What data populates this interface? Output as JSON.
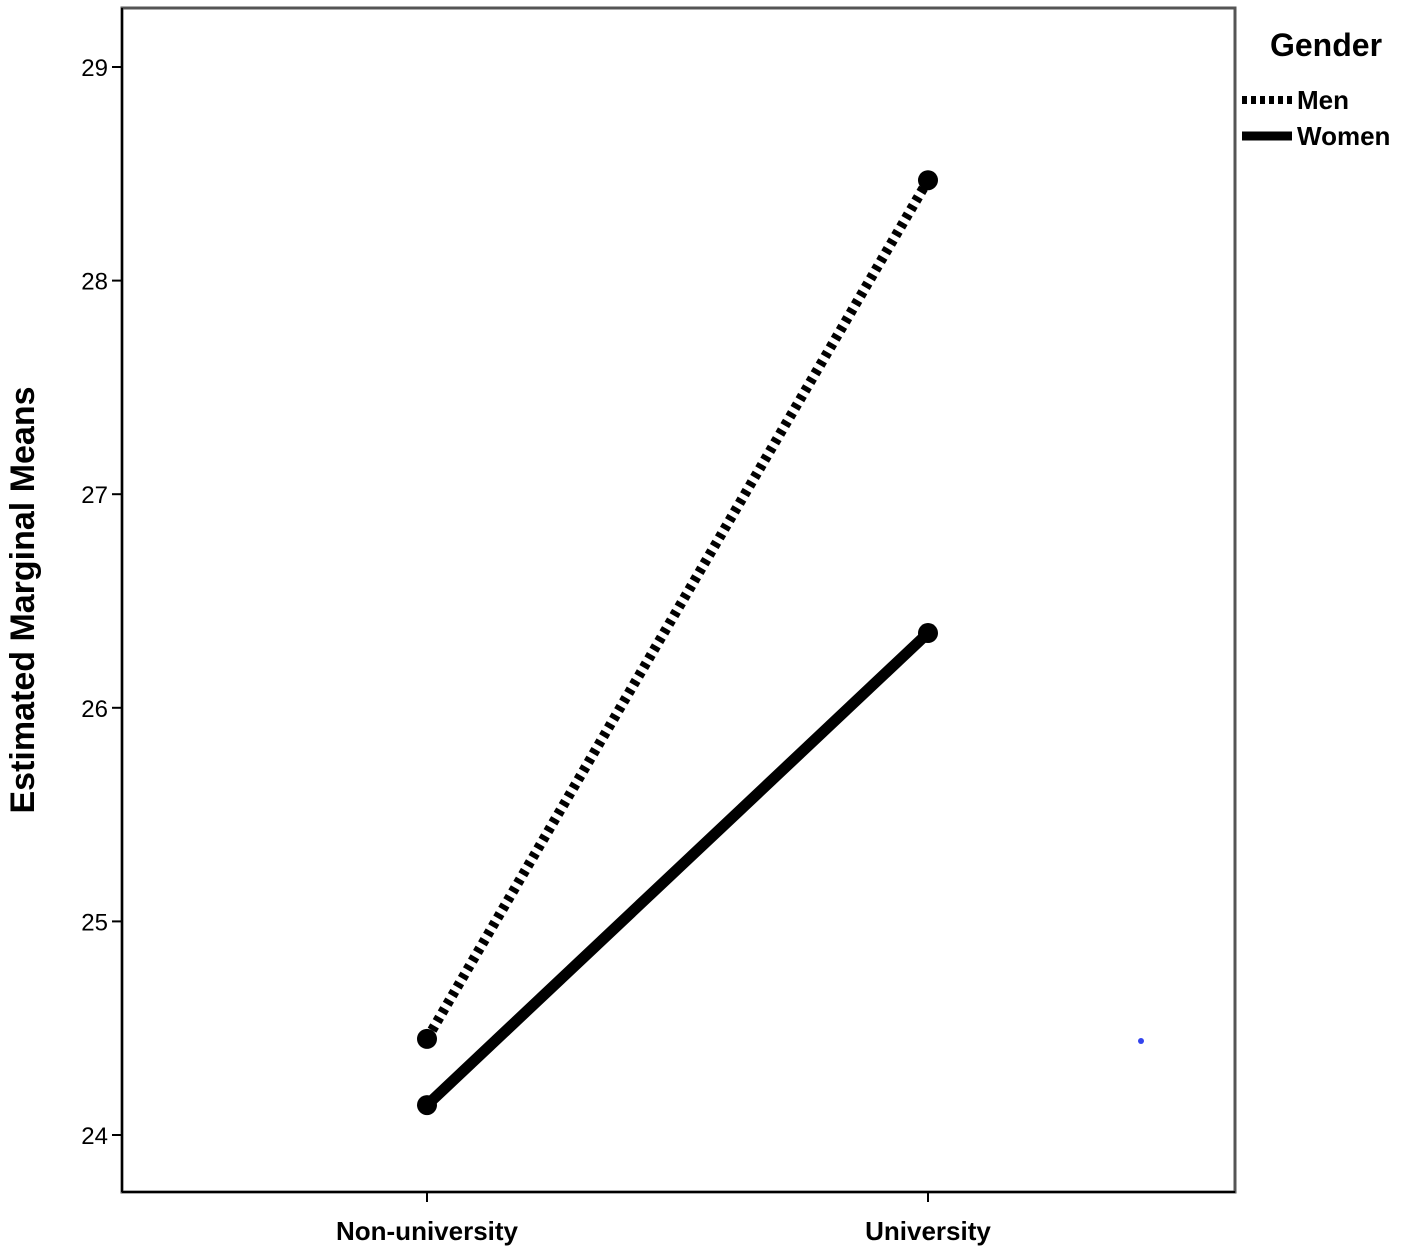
{
  "chart_data": {
    "type": "line",
    "ylabel": "Estimated Marginal Means",
    "xlabel": "",
    "categories": [
      "Non-university",
      "University"
    ],
    "ylim": [
      23.74,
      29.28
    ],
    "yticks": [
      24,
      25,
      26,
      27,
      28,
      29
    ],
    "grid": false,
    "legend": {
      "title": "Gender",
      "position": "top-right"
    },
    "series": [
      {
        "name": "Men",
        "values": [
          24.45,
          28.47
        ],
        "style": "dotted",
        "color": "#000000"
      },
      {
        "name": "Women",
        "values": [
          24.14,
          26.35
        ],
        "style": "solid",
        "color": "#000000"
      }
    ]
  }
}
